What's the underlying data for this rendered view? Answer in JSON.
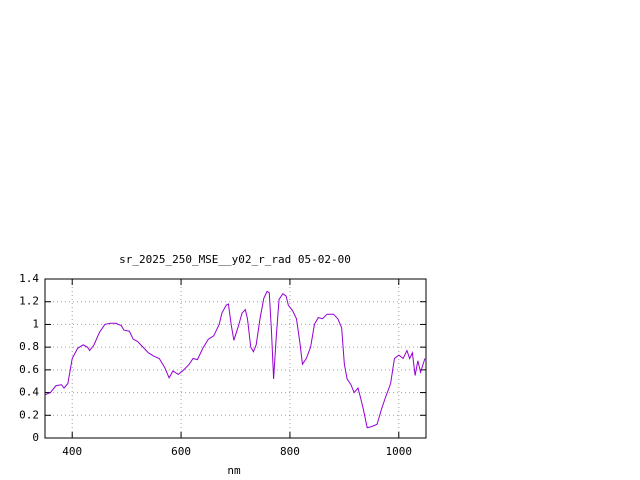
{
  "chart_data": {
    "type": "line",
    "title": "sr_2025_250_MSE__y02_r_rad 05-02-00",
    "x_label": "nm",
    "color": "#9400d3",
    "grid": true,
    "xlim": [
      350,
      1050
    ],
    "ylim": [
      0,
      1.4
    ],
    "xticks": [
      400,
      600,
      800,
      1000
    ],
    "yticks": [
      0,
      0.2,
      0.4,
      0.6,
      0.8,
      1,
      1.2,
      1.4
    ],
    "x": [
      350,
      360,
      370,
      380,
      385,
      392,
      400,
      410,
      420,
      428,
      432,
      440,
      450,
      460,
      470,
      480,
      490,
      495,
      505,
      512,
      520,
      530,
      540,
      550,
      560,
      570,
      578,
      585,
      595,
      605,
      615,
      622,
      630,
      640,
      650,
      660,
      670,
      675,
      683,
      687,
      692,
      697,
      705,
      712,
      718,
      722,
      728,
      733,
      738,
      745,
      752,
      758,
      762,
      766,
      770,
      775,
      780,
      787,
      793,
      797,
      805,
      812,
      818,
      823,
      830,
      838,
      845,
      852,
      860,
      868,
      880,
      888,
      895,
      900,
      905,
      912,
      918,
      925,
      930,
      935,
      942,
      950,
      960,
      968,
      975,
      985,
      992,
      1000,
      1008,
      1015,
      1020,
      1025,
      1030,
      1035,
      1040,
      1048
    ],
    "values": [
      0.38,
      0.4,
      0.46,
      0.47,
      0.44,
      0.48,
      0.7,
      0.79,
      0.82,
      0.8,
      0.77,
      0.82,
      0.93,
      1.0,
      1.01,
      1.01,
      0.99,
      0.95,
      0.94,
      0.87,
      0.85,
      0.8,
      0.75,
      0.72,
      0.7,
      0.62,
      0.53,
      0.59,
      0.56,
      0.6,
      0.65,
      0.7,
      0.69,
      0.79,
      0.87,
      0.9,
      1.0,
      1.1,
      1.17,
      1.18,
      1.0,
      0.86,
      0.98,
      1.1,
      1.13,
      1.05,
      0.8,
      0.76,
      0.82,
      1.05,
      1.23,
      1.29,
      1.28,
      0.95,
      0.52,
      0.9,
      1.22,
      1.27,
      1.25,
      1.17,
      1.12,
      1.05,
      0.85,
      0.65,
      0.7,
      0.8,
      1.0,
      1.06,
      1.05,
      1.09,
      1.09,
      1.05,
      0.97,
      0.65,
      0.52,
      0.47,
      0.4,
      0.44,
      0.35,
      0.25,
      0.09,
      0.1,
      0.12,
      0.25,
      0.35,
      0.48,
      0.7,
      0.73,
      0.7,
      0.77,
      0.7,
      0.75,
      0.55,
      0.68,
      0.58,
      0.7
    ]
  }
}
